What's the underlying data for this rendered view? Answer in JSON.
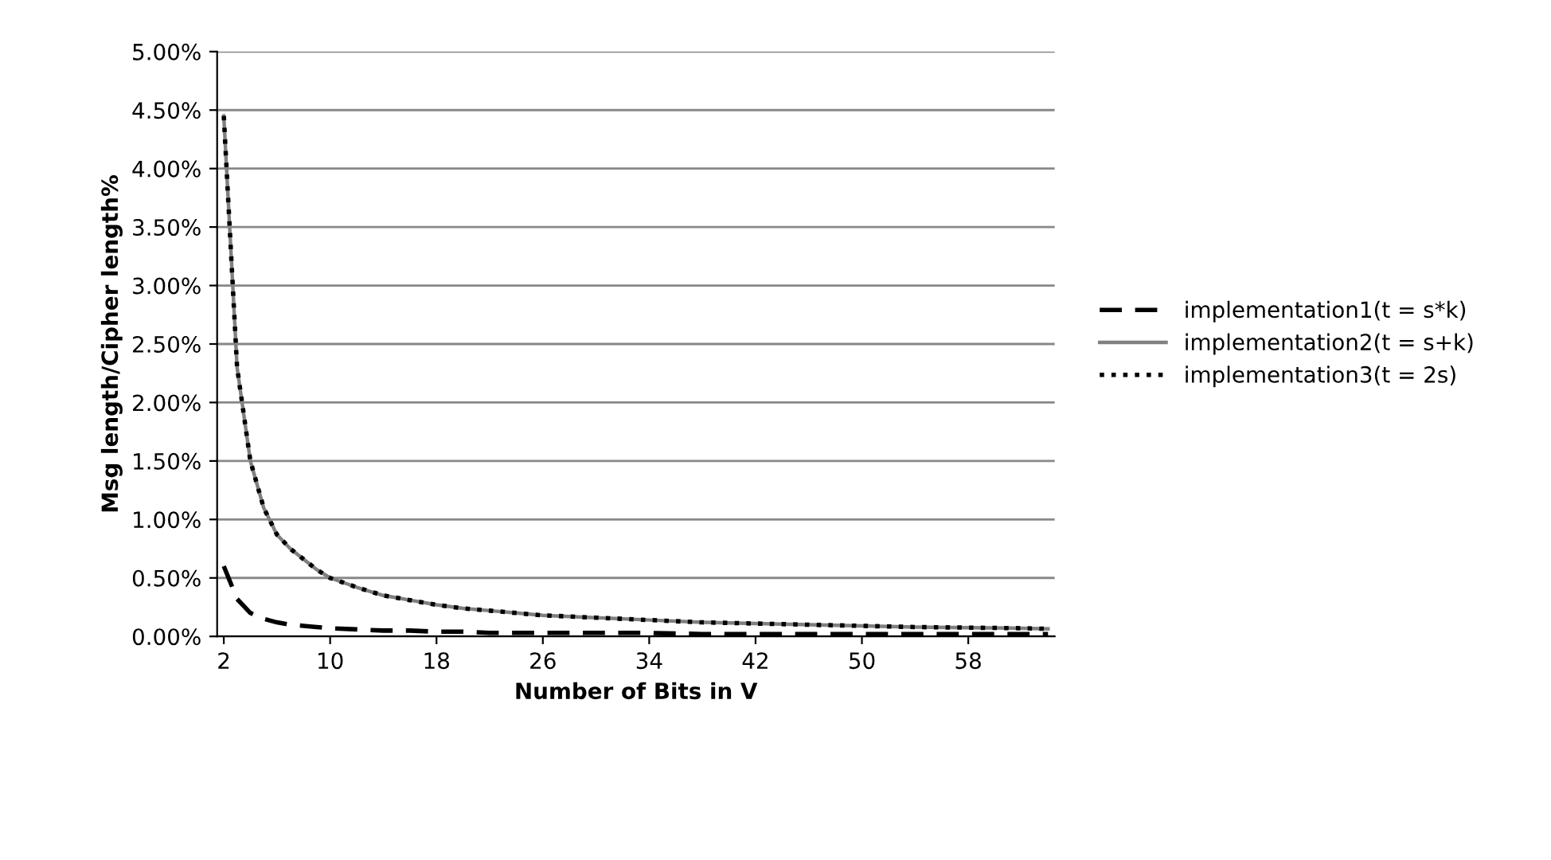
{
  "chart_data": {
    "type": "line",
    "xlabel": "Number of Bits in V",
    "ylabel": "Msg length/Cipher length%",
    "x": [
      2,
      3,
      4,
      5,
      6,
      7,
      8,
      9,
      10,
      12,
      14,
      16,
      18,
      20,
      22,
      24,
      26,
      28,
      30,
      34,
      38,
      42,
      46,
      50,
      54,
      58,
      62,
      64
    ],
    "series": [
      {
        "name": "implementation1(t = s*k)",
        "color": "#000000",
        "line_style": "dashed",
        "values": [
          0.6,
          0.32,
          0.2,
          0.15,
          0.12,
          0.1,
          0.09,
          0.08,
          0.07,
          0.06,
          0.05,
          0.05,
          0.04,
          0.04,
          0.03,
          0.03,
          0.03,
          0.03,
          0.03,
          0.03,
          0.02,
          0.02,
          0.02,
          0.02,
          0.02,
          0.02,
          0.02,
          0.02
        ]
      },
      {
        "name": "implementation2(t = s+k)",
        "color": "#808080",
        "line_style": "solid",
        "values": [
          4.45,
          2.3,
          1.5,
          1.1,
          0.87,
          0.75,
          0.66,
          0.57,
          0.5,
          0.42,
          0.35,
          0.31,
          0.27,
          0.24,
          0.22,
          0.2,
          0.18,
          0.17,
          0.16,
          0.14,
          0.12,
          0.11,
          0.1,
          0.09,
          0.08,
          0.075,
          0.07,
          0.065
        ]
      },
      {
        "name": "implementation3(t = 2s)",
        "color": "#000000",
        "line_style": "dotted",
        "values": [
          4.45,
          2.3,
          1.5,
          1.1,
          0.87,
          0.75,
          0.66,
          0.57,
          0.5,
          0.42,
          0.35,
          0.31,
          0.27,
          0.24,
          0.22,
          0.2,
          0.18,
          0.17,
          0.16,
          0.14,
          0.12,
          0.11,
          0.1,
          0.09,
          0.08,
          0.075,
          0.07,
          0.065
        ]
      }
    ],
    "xlim": [
      1.5,
      64.5
    ],
    "xticks": [
      2,
      10,
      18,
      26,
      34,
      42,
      50,
      58
    ],
    "ylim": [
      0,
      5
    ],
    "yticks": [
      {
        "value": 0,
        "label": "0.00%"
      },
      {
        "value": 0.5,
        "label": "0.50%"
      },
      {
        "value": 1,
        "label": "1.00%"
      },
      {
        "value": 1.5,
        "label": "1.50%"
      },
      {
        "value": 2,
        "label": "2.00%"
      },
      {
        "value": 2.5,
        "label": "2.50%"
      },
      {
        "value": 3,
        "label": "3.00%"
      },
      {
        "value": 3.5,
        "label": "3.50%"
      },
      {
        "value": 4,
        "label": "4.00%"
      },
      {
        "value": 4.5,
        "label": "4.50%"
      },
      {
        "value": 5,
        "label": "5.00%"
      }
    ],
    "grid": "y",
    "legend": "right",
    "marker": "none"
  }
}
